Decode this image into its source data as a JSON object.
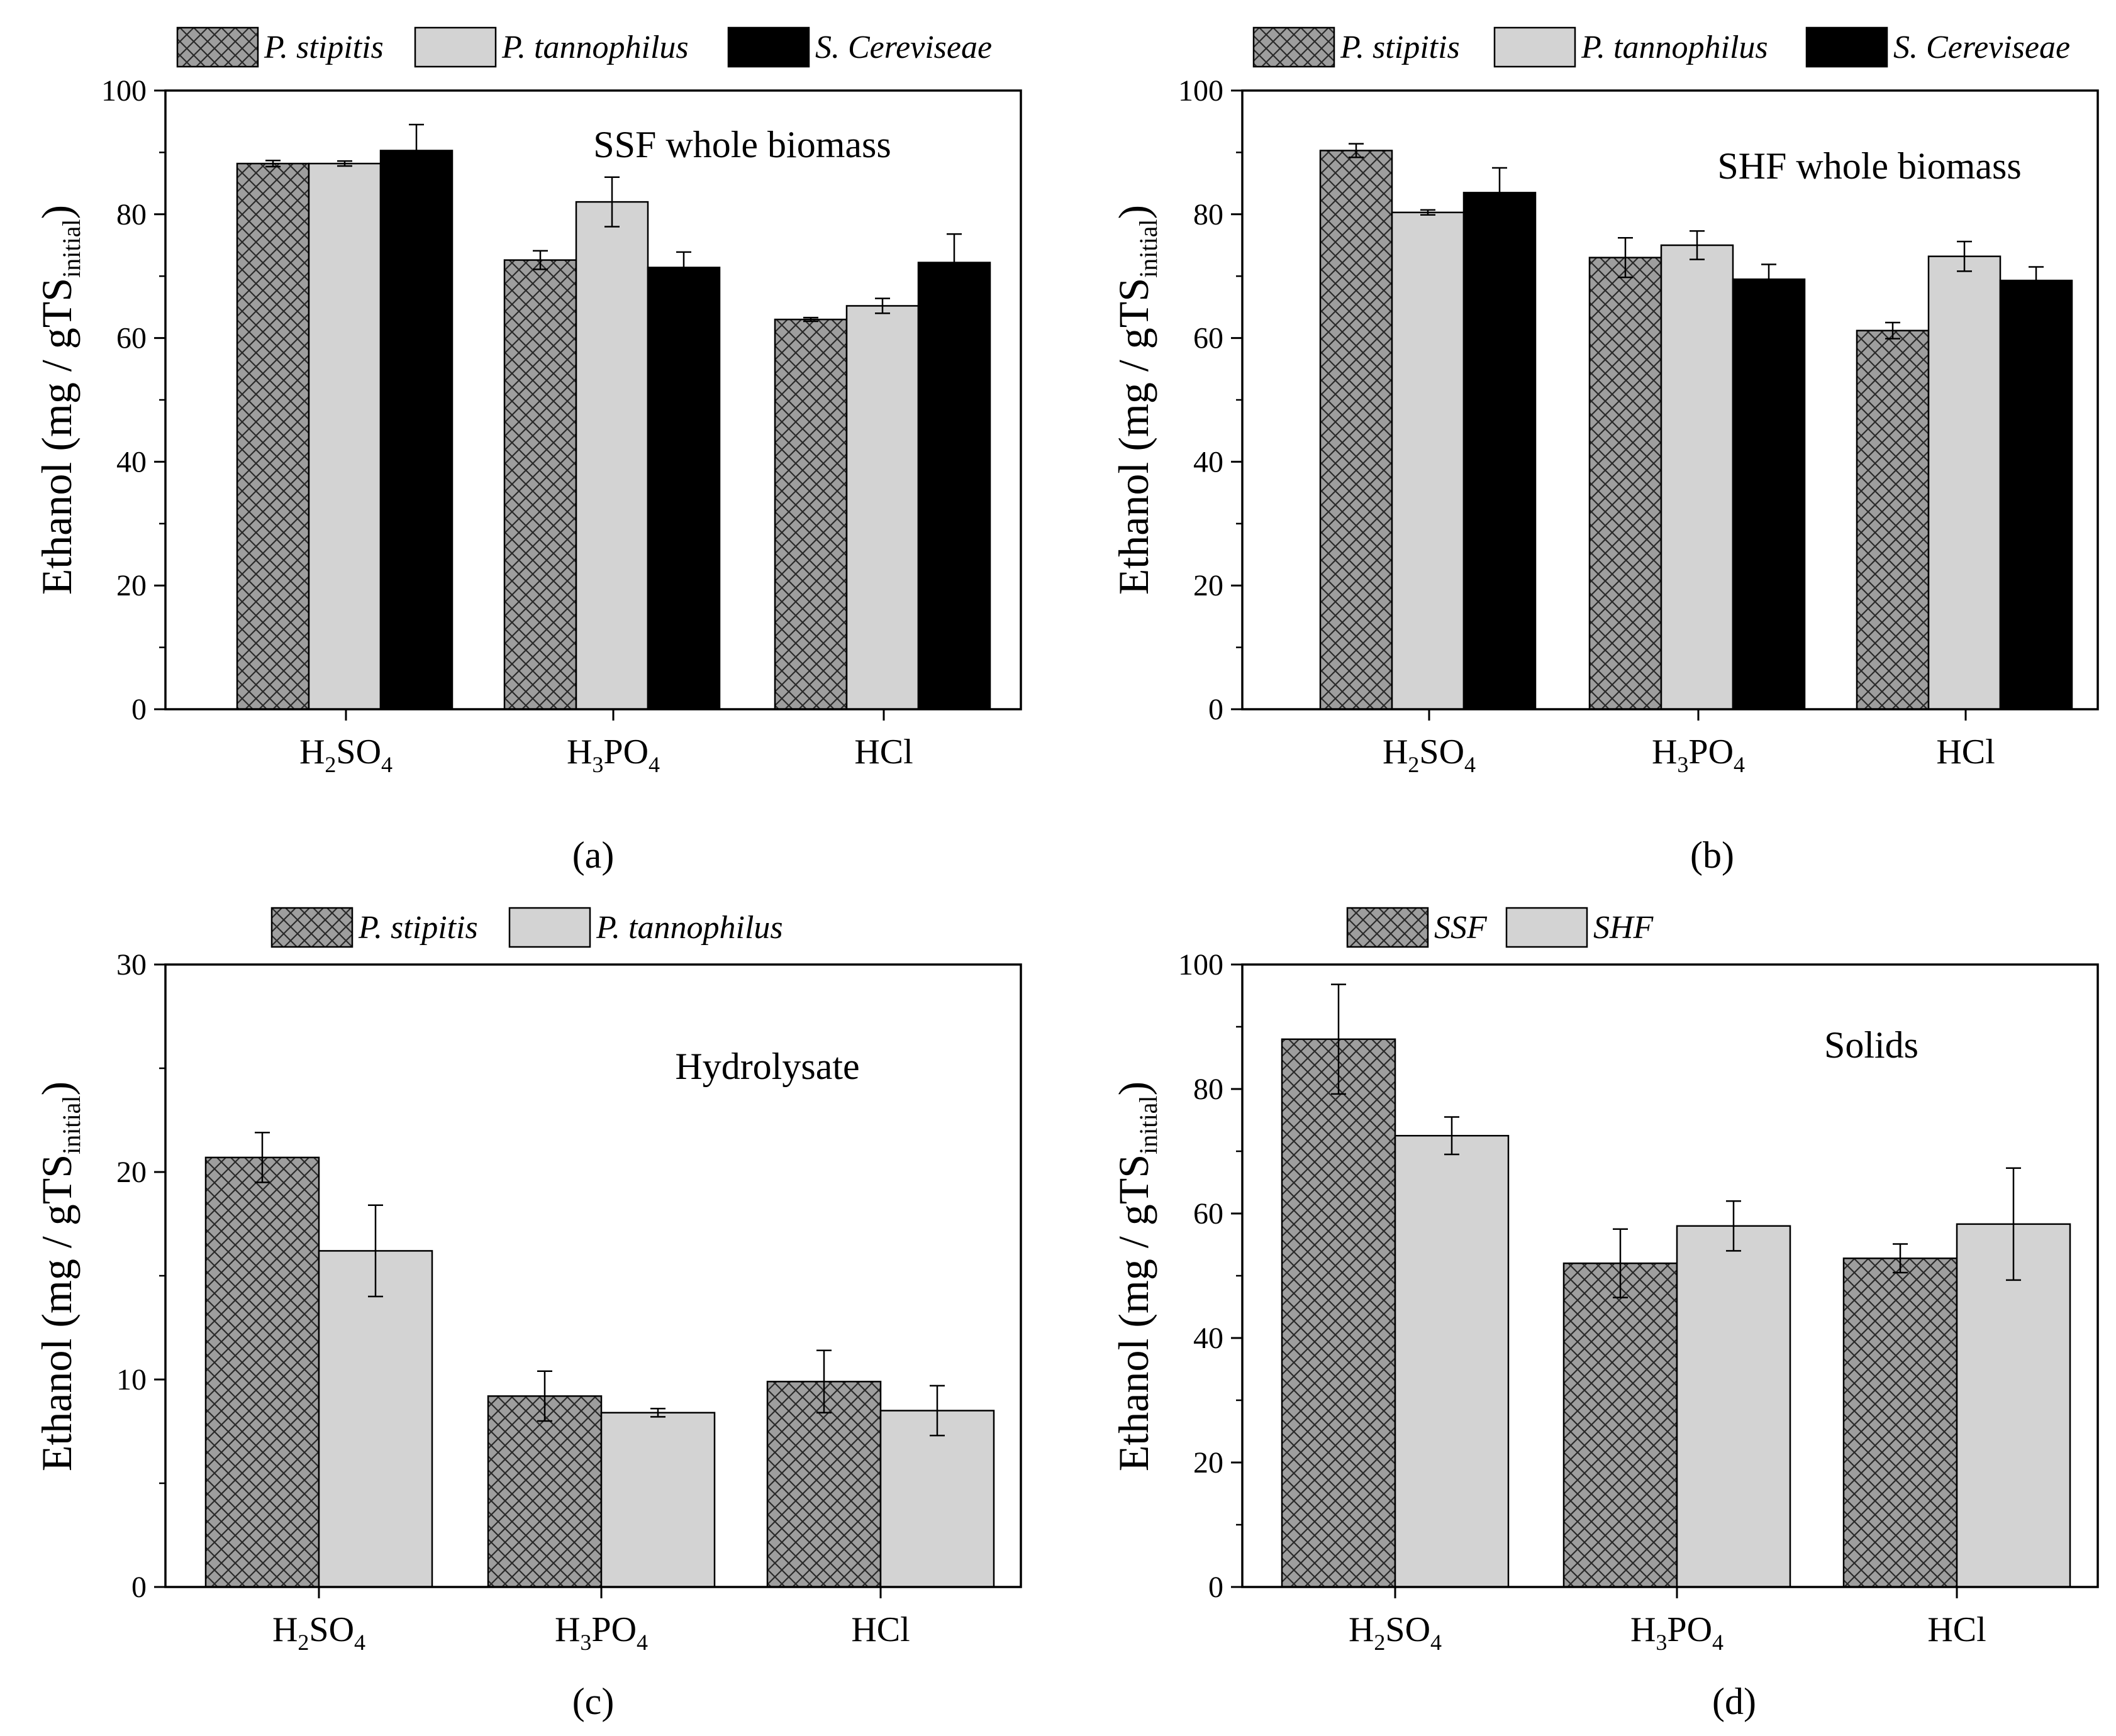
{
  "chart_data": [
    {
      "panel": "(a)",
      "type": "bar",
      "title": "SSF whole biomass",
      "ylabel_main": "Ethanol (mg / gTS",
      "ylabel_sub": "initial",
      "ylabel_close": ")",
      "ylim": [
        0,
        100
      ],
      "yticks": [
        "0",
        "20",
        "40",
        "60",
        "80",
        "100"
      ],
      "categories": [
        {
          "base1": "H",
          "sub1": "2",
          "base2": "SO",
          "sub2": "4"
        },
        {
          "base1": "H",
          "sub1": "3",
          "base2": "PO",
          "sub2": "4"
        },
        {
          "base1": "HCl",
          "sub1": "",
          "base2": "",
          "sub2": ""
        }
      ],
      "series": [
        {
          "name": "P. stipitis",
          "fill": "hatch",
          "values": [
            88.2,
            72.6,
            63.0
          ],
          "errors": [
            0.5,
            1.5,
            0.3
          ]
        },
        {
          "name": "P. tannophilus",
          "fill": "#d3d3d3",
          "values": [
            88.2,
            82.0,
            65.2
          ],
          "errors": [
            0.4,
            4.0,
            1.2
          ]
        },
        {
          "name": "S. Cereviseae",
          "fill": "#000000",
          "values": [
            90.3,
            71.4,
            72.2
          ],
          "errors": [
            4.2,
            2.5,
            4.6
          ]
        }
      ]
    },
    {
      "panel": "(b)",
      "type": "bar",
      "title": "SHF whole biomass",
      "ylabel_main": "Ethanol (mg / gTS",
      "ylabel_sub": "initial",
      "ylabel_close": ")",
      "ylim": [
        0,
        100
      ],
      "yticks": [
        "0",
        "20",
        "40",
        "60",
        "80",
        "100"
      ],
      "categories": [
        {
          "base1": "H",
          "sub1": "2",
          "base2": "SO",
          "sub2": "4"
        },
        {
          "base1": "H",
          "sub1": "3",
          "base2": "PO",
          "sub2": "4"
        },
        {
          "base1": "HCl",
          "sub1": "",
          "base2": "",
          "sub2": ""
        }
      ],
      "series": [
        {
          "name": "P. stipitis",
          "fill": "hatch",
          "values": [
            90.3,
            73.0,
            61.2
          ],
          "errors": [
            1.1,
            3.2,
            1.3
          ]
        },
        {
          "name": "P. tannophilus",
          "fill": "#d3d3d3",
          "values": [
            80.3,
            75.0,
            73.2
          ],
          "errors": [
            0.4,
            2.3,
            2.4
          ]
        },
        {
          "name": "S. Cereviseae",
          "fill": "#000000",
          "values": [
            83.5,
            69.5,
            69.3
          ],
          "errors": [
            4.0,
            2.4,
            2.2
          ]
        }
      ]
    },
    {
      "panel": "(c)",
      "type": "bar",
      "title": "Hydrolysate",
      "ylabel_main": "Ethanol (mg / gTS",
      "ylabel_sub": "initial",
      "ylabel_close": ")",
      "ylim": [
        0,
        30
      ],
      "yticks": [
        "0",
        "10",
        "20",
        "30"
      ],
      "categories": [
        {
          "base1": "H",
          "sub1": "2",
          "base2": "SO",
          "sub2": "4"
        },
        {
          "base1": "H",
          "sub1": "3",
          "base2": "PO",
          "sub2": "4"
        },
        {
          "base1": "HCl",
          "sub1": "",
          "base2": "",
          "sub2": ""
        }
      ],
      "series": [
        {
          "name": "P. stipitis",
          "fill": "hatch",
          "values": [
            20.7,
            9.2,
            9.9
          ],
          "errors": [
            1.2,
            1.2,
            1.5
          ]
        },
        {
          "name": "P. tannophilus",
          "fill": "#d3d3d3",
          "values": [
            16.2,
            8.4,
            8.5
          ],
          "errors": [
            2.2,
            0.2,
            1.2
          ]
        }
      ]
    },
    {
      "panel": "(d)",
      "type": "bar",
      "title": "Solids",
      "ylabel_main": "Ethanol (mg / gTS",
      "ylabel_sub": "initial",
      "ylabel_close": ")",
      "ylim": [
        0,
        100
      ],
      "yticks": [
        "0",
        "20",
        "40",
        "60",
        "80",
        "100"
      ],
      "categories": [
        {
          "base1": "H",
          "sub1": "2",
          "base2": "SO",
          "sub2": "4"
        },
        {
          "base1": "H",
          "sub1": "3",
          "base2": "PO",
          "sub2": "4"
        },
        {
          "base1": "HCl",
          "sub1": "",
          "base2": "",
          "sub2": ""
        }
      ],
      "series": [
        {
          "name": "SSF",
          "fill": "hatch",
          "values": [
            88.0,
            52.0,
            52.8
          ],
          "errors": [
            8.8,
            5.5,
            2.3
          ]
        },
        {
          "name": "SHF",
          "fill": "#d3d3d3",
          "values": [
            72.5,
            58.0,
            58.3
          ],
          "errors": [
            3.0,
            4.0,
            9.0
          ]
        }
      ]
    }
  ]
}
